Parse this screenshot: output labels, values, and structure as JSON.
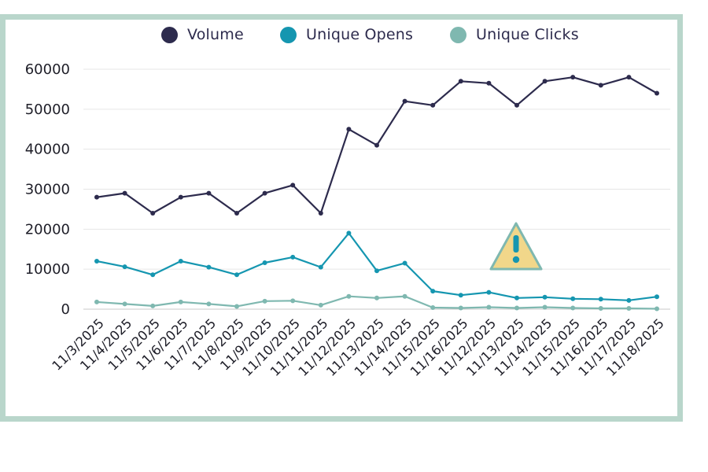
{
  "chart_data": {
    "type": "line",
    "categories": [
      "11/3/2025",
      "11/4/2025",
      "11/5/2025",
      "11/6/2025",
      "11/7/2025",
      "11/8/2025",
      "11/9/2025",
      "11/10/2025",
      "11/11/2025",
      "11/12/2025",
      "11/13/2025",
      "11/14/2025",
      "11/15/2025",
      "11/16/2025",
      "11/12/2025",
      "11/13/2025",
      "11/14/2025",
      "11/15/2025",
      "11/16/2025",
      "11/17/2025",
      "11/18/2025"
    ],
    "series": [
      {
        "name": "Volume",
        "color": "#2d2b4d",
        "values": [
          28000,
          29000,
          24000,
          28000,
          29000,
          24000,
          29000,
          31000,
          24000,
          45000,
          41000,
          52000,
          51000,
          57000,
          56500,
          51000,
          57000,
          58000,
          56000,
          58000,
          54000
        ]
      },
      {
        "name": "Unique Opens",
        "color": "#1596b0",
        "values": [
          12000,
          10600,
          8600,
          12000,
          10500,
          8600,
          11600,
          13000,
          10500,
          19000,
          9600,
          11500,
          4500,
          3500,
          4200,
          2800,
          3000,
          2600,
          2500,
          2200,
          3100
        ]
      },
      {
        "name": "Unique Clicks",
        "color": "#7fb8b0",
        "values": [
          1800,
          1300,
          800,
          1800,
          1300,
          700,
          2000,
          2100,
          1000,
          3200,
          2800,
          3200,
          400,
          300,
          500,
          300,
          500,
          300,
          200,
          200,
          100
        ]
      }
    ],
    "ylim": [
      0,
      60000
    ],
    "yticks": [
      "0",
      "10000",
      "20000",
      "30000",
      "40000",
      "50000",
      "60000"
    ],
    "grid": true,
    "legend_position": "top",
    "annotation": {
      "icon": "warning-icon",
      "fill": "#f1d78a",
      "stroke": "#7fb8b0",
      "glyph_color": "#1596b0",
      "category_index": 15
    }
  }
}
